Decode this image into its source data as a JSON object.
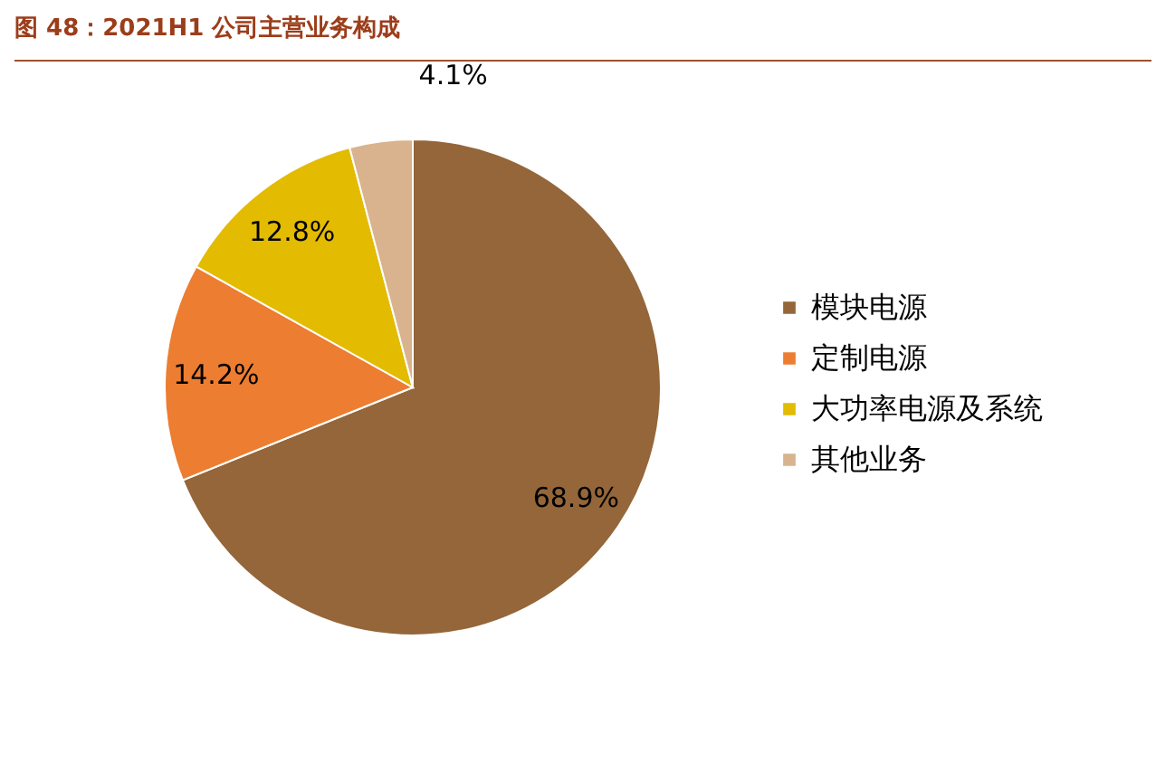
{
  "chart_data": {
    "type": "pie",
    "title": "图 48：2021H1 公司主营业务构成",
    "categories": [
      "模块电源",
      "定制电源",
      "大功率电源及系统",
      "其他业务"
    ],
    "values": [
      68.9,
      14.2,
      12.8,
      4.1
    ],
    "colors": [
      "#946639",
      "#ed7d31",
      "#e3bb00",
      "#d8b38e"
    ],
    "value_labels": [
      "68.9%",
      "14.2%",
      "12.8%",
      "4.1%"
    ],
    "legend": "right"
  }
}
